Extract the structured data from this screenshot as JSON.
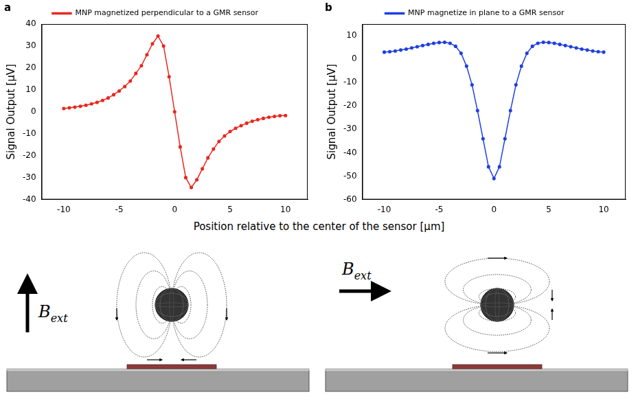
{
  "chart_data": [
    {
      "panel": "a",
      "type": "line",
      "legend": "top",
      "grid": false,
      "marker": "circle",
      "line_style": "solid",
      "y_label": "Signal Output [μV]",
      "xlim": [
        -12,
        12
      ],
      "xticks": [
        -10,
        -5,
        0,
        5,
        10
      ],
      "ylim": [
        -40,
        40
      ],
      "yticks": [
        -40,
        -30,
        -20,
        -10,
        0,
        10,
        20,
        30,
        40
      ],
      "x": [
        -10,
        -9.5,
        -9,
        -8.5,
        -8,
        -7.5,
        -7,
        -6.5,
        -6,
        -5.5,
        -5,
        -4.5,
        -4,
        -3.5,
        -3,
        -2.5,
        -2,
        -1.5,
        -1,
        -0.5,
        0,
        0.5,
        1,
        1.5,
        2,
        2.5,
        3,
        3.5,
        4,
        4.5,
        5,
        5.5,
        6,
        6.5,
        7,
        7.5,
        8,
        8.5,
        9,
        9.5,
        10
      ],
      "series": [
        {
          "name": "MNP magnetized perpendicular to a GMR sensor",
          "color": "#e8281e",
          "values": [
            1.5,
            1.8,
            2.1,
            2.5,
            3.0,
            3.6,
            4.3,
            5.2,
            6.3,
            7.8,
            9.5,
            11.5,
            14,
            17.5,
            21,
            26,
            31,
            34.5,
            30,
            16,
            0,
            -16,
            -30,
            -34.5,
            -31,
            -26,
            -21,
            -17,
            -13.5,
            -11,
            -9,
            -7.5,
            -6.3,
            -5.2,
            -4.3,
            -3.6,
            -3.0,
            -2.5,
            -2.1,
            -1.8,
            -1.7
          ]
        }
      ]
    },
    {
      "panel": "b",
      "type": "line",
      "legend": "top",
      "grid": false,
      "marker": "circle",
      "line_style": "solid",
      "y_label": "Signal Output [μV]",
      "xlim": [
        -12,
        12
      ],
      "xticks": [
        -10,
        -5,
        0,
        5,
        10
      ],
      "ylim": [
        -60,
        15
      ],
      "yticks": [
        -60,
        -50,
        -40,
        -30,
        -20,
        -10,
        0,
        10
      ],
      "x": [
        -10,
        -9.5,
        -9,
        -8.5,
        -8,
        -7.5,
        -7,
        -6.5,
        -6,
        -5.5,
        -5,
        -4.5,
        -4,
        -3.5,
        -3,
        -2.5,
        -2,
        -1.5,
        -1,
        -0.5,
        0,
        0.5,
        1,
        1.5,
        2,
        2.5,
        3,
        3.5,
        4,
        4.5,
        5,
        5.5,
        6,
        6.5,
        7,
        7.5,
        8,
        8.5,
        9,
        9.5,
        10
      ],
      "series": [
        {
          "name": "MNP magnetize in plane to a GMR sensor",
          "color": "#1f3fe0",
          "values": [
            3.0,
            3.2,
            3.5,
            3.9,
            4.3,
            4.8,
            5.3,
            5.8,
            6.3,
            6.8,
            7.1,
            7.2,
            6.8,
            5.5,
            2.5,
            -3,
            -11,
            -22,
            -34,
            -46,
            -51,
            -46,
            -34,
            -22,
            -11,
            -3,
            2.5,
            5.5,
            6.8,
            7.2,
            7.1,
            6.8,
            6.3,
            5.8,
            5.3,
            4.8,
            4.3,
            3.9,
            3.5,
            3.2,
            3.0
          ]
        }
      ]
    }
  ],
  "x_label": "Position relative to the center of the sensor [μm]",
  "diagrams": [
    {
      "field": {
        "symbol": "B",
        "subscript": "ext"
      },
      "direction": "up"
    },
    {
      "field": {
        "symbol": "B",
        "subscript": "ext"
      },
      "direction": "right"
    }
  ]
}
